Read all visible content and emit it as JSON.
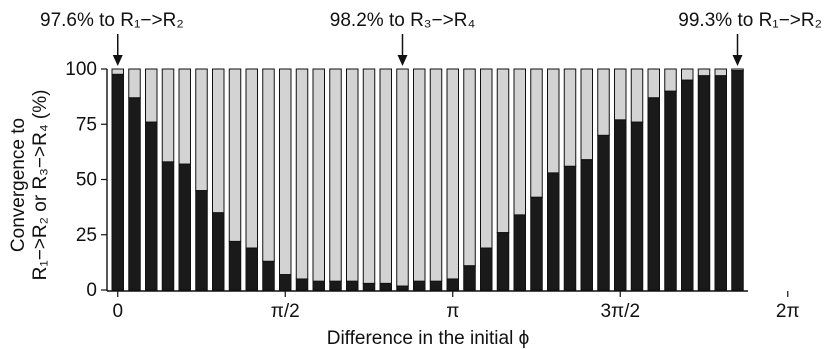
{
  "chart_data": {
    "type": "bar",
    "stacked": true,
    "xlabel": "Difference in the initial ϕ",
    "ylabel_line1": "Convergence to",
    "ylabel_line2": "R₁−>R₂ or R₃−>R₄ (%)",
    "ylim": [
      0,
      100
    ],
    "yticks": [
      0,
      25,
      50,
      75,
      100
    ],
    "xtick_labels": [
      "0",
      "π/2",
      "π",
      "3π/2",
      "2π"
    ],
    "xticks_at_bar_index": [
      0,
      10,
      20,
      30,
      40
    ],
    "series": [
      {
        "color": "#1a1a1a",
        "values": [
          97.6,
          87,
          76,
          58,
          57,
          45,
          35,
          22,
          19,
          13,
          7,
          5,
          4,
          4,
          4,
          3,
          3,
          1.8,
          4,
          4,
          5,
          11,
          19,
          26,
          34,
          42,
          53,
          56,
          59,
          70,
          77,
          76,
          87,
          90,
          95,
          97,
          97,
          99.3
        ]
      },
      {
        "color": "#d3d3d3",
        "values": [
          2.4,
          13,
          24,
          42,
          43,
          55,
          65,
          78,
          81,
          87,
          93,
          95,
          96,
          96,
          96,
          97,
          97,
          98.2,
          96,
          96,
          95,
          89,
          81,
          74,
          66,
          58,
          47,
          44,
          41,
          30,
          23,
          24,
          13,
          10,
          5,
          3,
          3,
          0.7
        ]
      }
    ],
    "annotations": [
      {
        "text": "97.6% to R₁−>R₂",
        "bar_index": 0
      },
      {
        "text": "98.2% to R₃−>R₄",
        "bar_index": 17
      },
      {
        "text": "99.3% to R₁−>R₂",
        "bar_index": 37
      }
    ],
    "grid": false,
    "legend": "none"
  }
}
